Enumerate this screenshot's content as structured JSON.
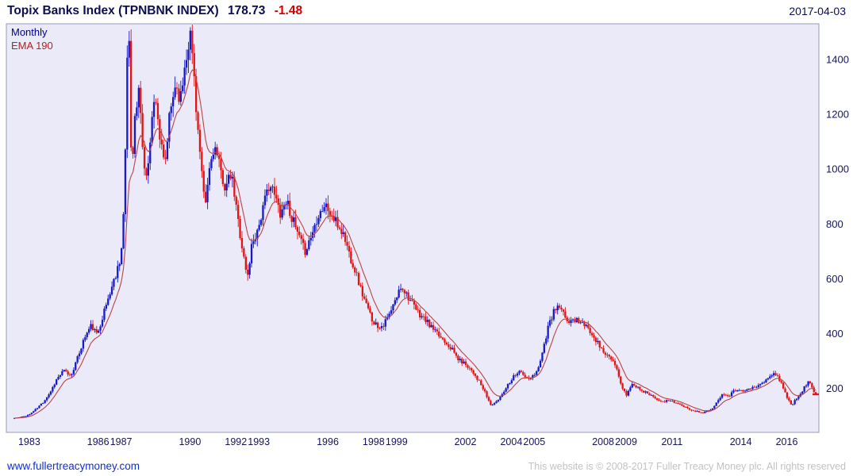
{
  "header": {
    "title": "Topix Banks Index (TPNBNK INDEX)",
    "last_price": "178.73",
    "change": "-1.48",
    "date": "2017-04-03"
  },
  "chart_legend": {
    "timeframe": "Monthly",
    "overlay": "EMA 190"
  },
  "footer": {
    "site_link": "www.fullertreacymoney.com",
    "copyright": "This website is © 2008-2017 Fuller Treacy Money plc. All rights reserved"
  },
  "chart_data": {
    "type": "candlestick",
    "title": "Topix Banks Index (TPNBNK INDEX)",
    "timeframe": "Monthly",
    "overlay": "EMA 190",
    "last": 178.73,
    "change": -1.48,
    "date": "2017-04-03",
    "grid": false,
    "legend_position": "top-left",
    "y_axis_side": "right",
    "y_ticks": [
      200,
      400,
      600,
      800,
      1000,
      1200,
      1400
    ],
    "y_range": [
      40,
      1530
    ],
    "x_range": [
      1982.0,
      2017.4
    ],
    "data_start": 1982.35,
    "data_end": 2017.27,
    "x_ticks": [
      1983,
      1986,
      1987,
      1990,
      1992,
      1993,
      1996,
      1998,
      1999,
      2002,
      2004,
      2005,
      2008,
      2009,
      2011,
      2014,
      2016
    ],
    "keyframes": [
      [
        1982.35,
        92
      ],
      [
        1982.7,
        96
      ],
      [
        1983.0,
        105
      ],
      [
        1983.3,
        125
      ],
      [
        1983.6,
        150
      ],
      [
        1983.9,
        185
      ],
      [
        1984.2,
        235
      ],
      [
        1984.5,
        265
      ],
      [
        1984.8,
        245
      ],
      [
        1985.1,
        310
      ],
      [
        1985.4,
        385
      ],
      [
        1985.7,
        430
      ],
      [
        1985.95,
        395
      ],
      [
        1986.2,
        465
      ],
      [
        1986.5,
        545
      ],
      [
        1986.75,
        610
      ],
      [
        1987.0,
        690
      ],
      [
        1987.15,
        900
      ],
      [
        1987.28,
        1470
      ],
      [
        1987.36,
        1470
      ],
      [
        1987.45,
        1000
      ],
      [
        1987.6,
        1180
      ],
      [
        1987.8,
        1300
      ],
      [
        1987.95,
        1050
      ],
      [
        1988.1,
        960
      ],
      [
        1988.3,
        1150
      ],
      [
        1988.5,
        1280
      ],
      [
        1988.7,
        1100
      ],
      [
        1988.9,
        1000
      ],
      [
        1989.1,
        1180
      ],
      [
        1989.35,
        1310
      ],
      [
        1989.6,
        1260
      ],
      [
        1989.8,
        1400
      ],
      [
        1990.0,
        1500
      ],
      [
        1990.15,
        1380
      ],
      [
        1990.3,
        1190
      ],
      [
        1990.5,
        990
      ],
      [
        1990.65,
        850
      ],
      [
        1990.85,
        1000
      ],
      [
        1991.05,
        1090
      ],
      [
        1991.3,
        1000
      ],
      [
        1991.55,
        930
      ],
      [
        1991.8,
        980
      ],
      [
        1992.05,
        840
      ],
      [
        1992.3,
        700
      ],
      [
        1992.5,
        600
      ],
      [
        1992.7,
        730
      ],
      [
        1992.95,
        780
      ],
      [
        1993.2,
        860
      ],
      [
        1993.45,
        950
      ],
      [
        1993.7,
        900
      ],
      [
        1993.95,
        840
      ],
      [
        1994.2,
        890
      ],
      [
        1994.45,
        820
      ],
      [
        1994.7,
        760
      ],
      [
        1995.0,
        700
      ],
      [
        1995.3,
        760
      ],
      [
        1995.6,
        840
      ],
      [
        1995.9,
        870
      ],
      [
        1996.15,
        830
      ],
      [
        1996.4,
        800
      ],
      [
        1996.7,
        760
      ],
      [
        1996.95,
        690
      ],
      [
        1997.2,
        630
      ],
      [
        1997.45,
        560
      ],
      [
        1997.7,
        500
      ],
      [
        1997.95,
        450
      ],
      [
        1998.2,
        425
      ],
      [
        1998.45,
        435
      ],
      [
        1998.7,
        470
      ],
      [
        1998.95,
        520
      ],
      [
        1999.2,
        575
      ],
      [
        1999.45,
        545
      ],
      [
        1999.7,
        505
      ],
      [
        1999.95,
        475
      ],
      [
        2000.2,
        455
      ],
      [
        2000.5,
        425
      ],
      [
        2000.8,
        395
      ],
      [
        2001.1,
        375
      ],
      [
        2001.4,
        345
      ],
      [
        2001.7,
        305
      ],
      [
        2002.0,
        290
      ],
      [
        2002.3,
        265
      ],
      [
        2002.6,
        225
      ],
      [
        2002.85,
        185
      ],
      [
        2003.1,
        140
      ],
      [
        2003.35,
        150
      ],
      [
        2003.6,
        180
      ],
      [
        2003.85,
        215
      ],
      [
        2004.1,
        245
      ],
      [
        2004.35,
        265
      ],
      [
        2004.6,
        240
      ],
      [
        2004.85,
        235
      ],
      [
        2005.1,
        260
      ],
      [
        2005.35,
        330
      ],
      [
        2005.6,
        420
      ],
      [
        2005.85,
        480
      ],
      [
        2006.05,
        500
      ],
      [
        2006.3,
        465
      ],
      [
        2006.55,
        440
      ],
      [
        2006.8,
        455
      ],
      [
        2007.05,
        440
      ],
      [
        2007.3,
        420
      ],
      [
        2007.55,
        400
      ],
      [
        2007.8,
        360
      ],
      [
        2008.05,
        330
      ],
      [
        2008.3,
        310
      ],
      [
        2008.55,
        280
      ],
      [
        2008.8,
        210
      ],
      [
        2009.0,
        175
      ],
      [
        2009.25,
        215
      ],
      [
        2009.5,
        205
      ],
      [
        2009.75,
        190
      ],
      [
        2010.0,
        180
      ],
      [
        2010.3,
        165
      ],
      [
        2010.6,
        150
      ],
      [
        2010.9,
        158
      ],
      [
        2011.2,
        148
      ],
      [
        2011.5,
        132
      ],
      [
        2011.8,
        124
      ],
      [
        2012.1,
        116
      ],
      [
        2012.4,
        112
      ],
      [
        2012.7,
        124
      ],
      [
        2012.95,
        148
      ],
      [
        2013.2,
        185
      ],
      [
        2013.45,
        172
      ],
      [
        2013.7,
        190
      ],
      [
        2013.95,
        198
      ],
      [
        2014.2,
        192
      ],
      [
        2014.45,
        200
      ],
      [
        2014.7,
        208
      ],
      [
        2015.0,
        222
      ],
      [
        2015.3,
        248
      ],
      [
        2015.55,
        252
      ],
      [
        2015.8,
        215
      ],
      [
        2016.0,
        170
      ],
      [
        2016.2,
        138
      ],
      [
        2016.45,
        165
      ],
      [
        2016.7,
        195
      ],
      [
        2016.95,
        228
      ],
      [
        2017.1,
        200
      ],
      [
        2017.27,
        178.73
      ]
    ],
    "colors": {
      "up": "#1818c4",
      "down": "#e01414",
      "ema": "#bb4444",
      "plot_bg": "#eaeaf8",
      "plot_border": "#9a9ac0",
      "axis_text": "#14145e"
    }
  }
}
